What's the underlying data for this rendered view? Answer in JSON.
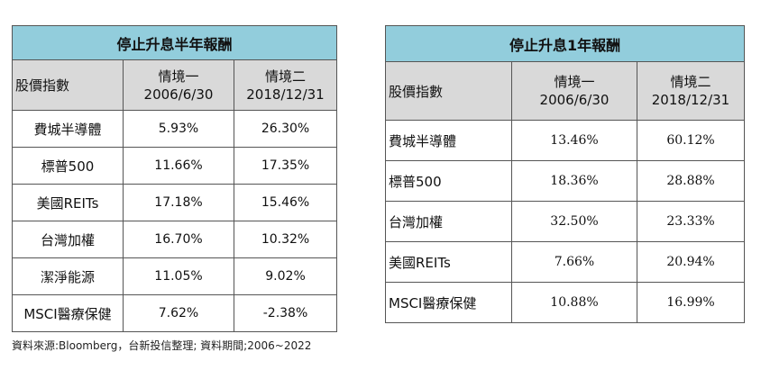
{
  "left_table": {
    "title": "停止升息半年報酬",
    "header": {
      "label": "股價指數",
      "col1": [
        "情境一",
        "2006/6/30"
      ],
      "col2": [
        "情境二",
        "2018/12/31"
      ]
    },
    "rows": [
      {
        "name": "費城半導體",
        "v1": "5.93%",
        "v2": "26.30%"
      },
      {
        "name": "標普500",
        "v1": "11.66%",
        "v2": "17.35%"
      },
      {
        "name": "美國REITs",
        "v1": "17.18%",
        "v2": "15.46%"
      },
      {
        "name": "台灣加權",
        "v1": "16.70%",
        "v2": "10.32%"
      },
      {
        "name": "潔淨能源",
        "v1": "11.05%",
        "v2": "9.02%"
      },
      {
        "name": "MSCI醫療保健",
        "v1": "7.62%",
        "v2": "-2.38%"
      }
    ]
  },
  "right_table": {
    "title": "停止升息1年報酬",
    "header": {
      "label": "股價指數",
      "col1": [
        "情境一",
        "2006/6/30"
      ],
      "col2": [
        "情境二",
        "2018/12/31"
      ]
    },
    "rows": [
      {
        "name": "費城半導體",
        "v1": "13.46%",
        "v2": "60.12%"
      },
      {
        "name": "標普500",
        "v1": "18.36%",
        "v2": "28.88%"
      },
      {
        "name": "台灣加權",
        "v1": "32.50%",
        "v2": "23.33%"
      },
      {
        "name": "美國REITs",
        "v1": "7.66%",
        "v2": "20.94%"
      },
      {
        "name": "MSCI醫療保健",
        "v1": "10.88%",
        "v2": "16.99%"
      }
    ]
  },
  "source_note": "資料來源:Bloomberg，台新投信整理; 資料期間;2006~2022"
}
